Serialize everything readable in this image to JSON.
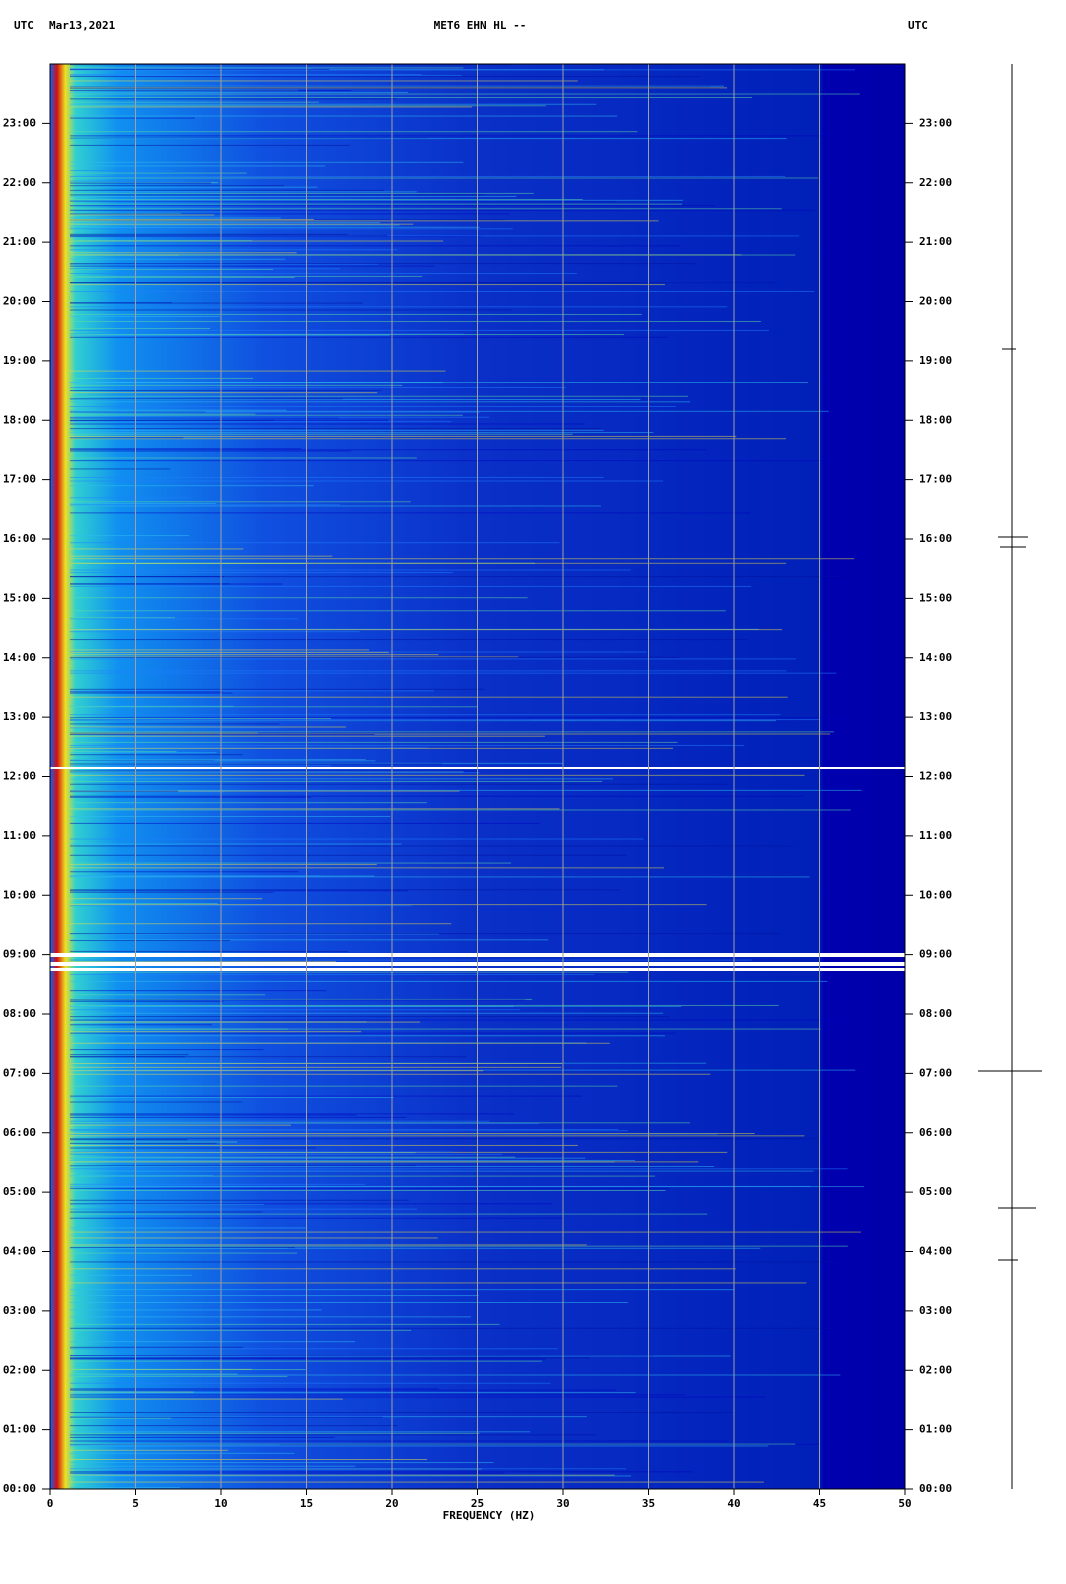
{
  "chart_data": {
    "type": "spectrogram",
    "header_left": "UTC",
    "date": "Mar13,2021",
    "title": "MET6 EHN HL --",
    "header_right": "UTC",
    "x_label": "FREQUENCY (HZ)",
    "xlim": [
      0,
      50
    ],
    "xticks": [
      0,
      5,
      10,
      15,
      20,
      25,
      30,
      35,
      40,
      45,
      50
    ],
    "ylim": [
      0,
      24
    ],
    "yticks": [
      {
        "value": 0,
        "label": "00:00"
      },
      {
        "value": 1,
        "label": "01:00"
      },
      {
        "value": 2,
        "label": "02:00"
      },
      {
        "value": 3,
        "label": "03:00"
      },
      {
        "value": 4,
        "label": "04:00"
      },
      {
        "value": 5,
        "label": "05:00"
      },
      {
        "value": 6,
        "label": "06:00"
      },
      {
        "value": 7,
        "label": "07:00"
      },
      {
        "value": 8,
        "label": "08:00"
      },
      {
        "value": 9,
        "label": "09:00"
      },
      {
        "value": 10,
        "label": "10:00"
      },
      {
        "value": 11,
        "label": "11:00"
      },
      {
        "value": 12,
        "label": "12:00"
      },
      {
        "value": 13,
        "label": "13:00"
      },
      {
        "value": 14,
        "label": "14:00"
      },
      {
        "value": 15,
        "label": "15:00"
      },
      {
        "value": 16,
        "label": "16:00"
      },
      {
        "value": 17,
        "label": "17:00"
      },
      {
        "value": 18,
        "label": "18:00"
      },
      {
        "value": 19,
        "label": "19:00"
      },
      {
        "value": 20,
        "label": "20:00"
      },
      {
        "value": 21,
        "label": "21:00"
      },
      {
        "value": 22,
        "label": "22:00"
      },
      {
        "value": 23,
        "label": "23:00"
      }
    ],
    "grid": true,
    "grid_color": "#a0a0a0"
  }
}
